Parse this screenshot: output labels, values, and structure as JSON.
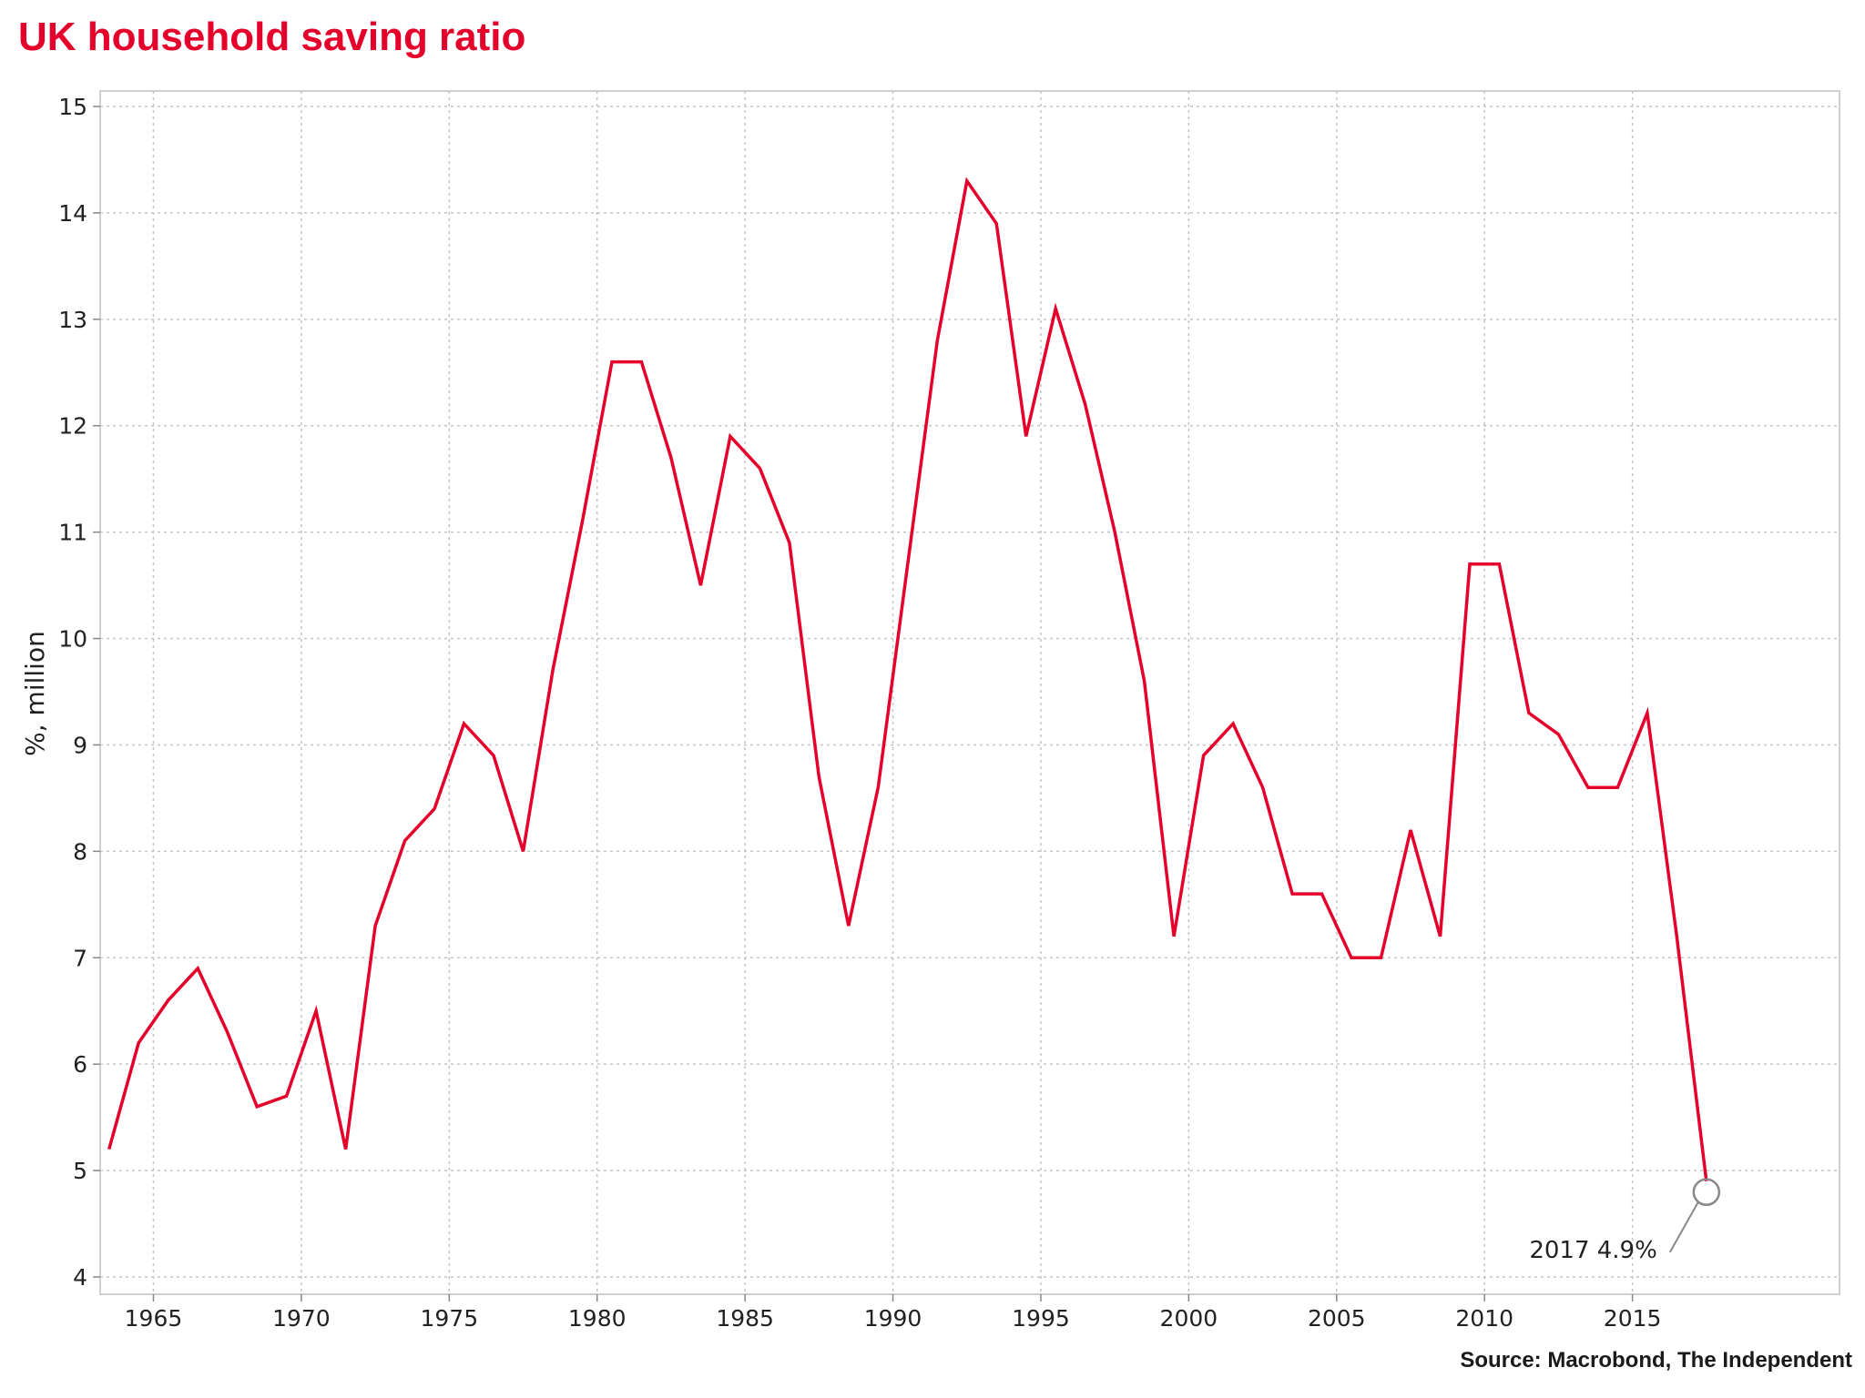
{
  "chart_data": {
    "type": "line",
    "title": "UK household saving ratio",
    "ylabel": "%, million",
    "xlabel": "",
    "source": "Source: Macrobond, The Independent",
    "xlim": [
      1963.2,
      2022
    ],
    "ylim": [
      4,
      15
    ],
    "yticks": [
      4,
      5,
      6,
      7,
      8,
      9,
      10,
      11,
      12,
      13,
      14,
      15
    ],
    "xticks": [
      1965,
      1970,
      1975,
      1980,
      1985,
      1990,
      1995,
      2000,
      2005,
      2010,
      2015
    ],
    "grid": true,
    "line_color": "#e4002b",
    "series": [
      {
        "x": [
          1963.5,
          1964.5,
          1965.5,
          1966.5,
          1967.5,
          1968.5,
          1969.5,
          1970.5,
          1971.5,
          1972.5,
          1973.5,
          1974.5,
          1975.5,
          1976.5,
          1977.5,
          1978.5,
          1979.5,
          1980.5,
          1981.5,
          1982.5,
          1983.5,
          1984.5,
          1985.5,
          1986.5,
          1987.5,
          1988.5,
          1989.5,
          1990.5,
          1991.5,
          1992.5,
          1993.5,
          1994.5,
          1995.5,
          1996.5,
          1997.5,
          1998.5,
          1999.5,
          2000.5,
          2001.5,
          2002.5,
          2003.5,
          2004.5,
          2005.5,
          2006.5,
          2007.5,
          2008.5,
          2009.5,
          2010.5,
          2011.5,
          2012.5,
          2013.5,
          2014.5,
          2015.5,
          2016.5,
          2017.5
        ],
        "values": [
          5.2,
          6.2,
          6.6,
          6.9,
          6.3,
          5.6,
          5.7,
          6.5,
          5.2,
          7.3,
          8.1,
          8.4,
          9.2,
          8.9,
          8.0,
          9.7,
          11.1,
          12.6,
          12.6,
          11.7,
          10.5,
          11.9,
          11.6,
          10.9,
          8.7,
          7.3,
          8.6,
          10.7,
          12.8,
          14.3,
          13.9,
          11.9,
          13.1,
          12.2,
          11.0,
          9.6,
          7.2,
          8.9,
          9.2,
          8.6,
          7.6,
          7.6,
          7.0,
          7.0,
          8.2,
          7.2,
          10.7,
          10.7,
          9.3,
          9.1,
          8.6,
          8.6,
          9.3,
          7.2,
          4.9
        ]
      }
    ],
    "annotation": {
      "text": "2017 4.9%",
      "x": 2017.5,
      "y": 4.9
    }
  }
}
